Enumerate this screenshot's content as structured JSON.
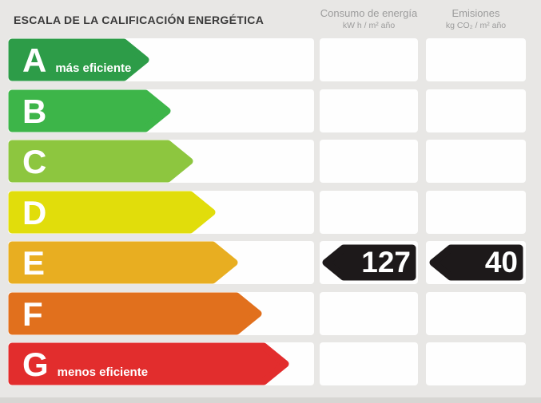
{
  "header": {
    "title": "ESCALA DE LA CALIFICACIÓN ENERGÉTICA",
    "columns": [
      {
        "label": "Consumo de energía",
        "unit": "kW h / m² año"
      },
      {
        "label": "Emisiones",
        "unit": "kg CO₂ / m² año"
      }
    ]
  },
  "scale": {
    "rows": [
      {
        "letter": "A",
        "note": "más eficiente",
        "color": "#2d9c48",
        "arrow_w": 177
      },
      {
        "letter": "B",
        "note": "",
        "color": "#3db549",
        "arrow_w": 204
      },
      {
        "letter": "C",
        "note": "",
        "color": "#8dc63f",
        "arrow_w": 232
      },
      {
        "letter": "D",
        "note": "",
        "color": "#e1dd0b",
        "arrow_w": 260
      },
      {
        "letter": "E",
        "note": "",
        "color": "#e8ae21",
        "arrow_w": 288
      },
      {
        "letter": "F",
        "note": "",
        "color": "#e1701d",
        "arrow_w": 318
      },
      {
        "letter": "G",
        "note": "menos eficiente",
        "color": "#e22d2d",
        "arrow_w": 352
      }
    ]
  },
  "rating": {
    "letter": "E",
    "consumption_value": "127",
    "emissions_value": "40",
    "badge_color": "#1d191a"
  },
  "chart_data": {
    "type": "bar",
    "title": "ESCALA DE LA CALIFICACIÓN ENERGÉTICA",
    "categories": [
      "A",
      "B",
      "C",
      "D",
      "E",
      "F",
      "G"
    ],
    "category_notes": {
      "A": "más eficiente",
      "G": "menos eficiente"
    },
    "bar_colors": [
      "#2d9c48",
      "#3db549",
      "#8dc63f",
      "#e1dd0b",
      "#e8ae21",
      "#e1701d",
      "#e22d2d"
    ],
    "values_relative_length": [
      177,
      204,
      232,
      260,
      288,
      318,
      352
    ],
    "series": [
      {
        "name": "Consumo de energía (kW h / m² año)",
        "values": [
          null,
          null,
          null,
          null,
          127,
          null,
          null
        ]
      },
      {
        "name": "Emisiones (kg CO₂ / m² año)",
        "values": [
          null,
          null,
          null,
          null,
          40,
          null,
          null
        ]
      }
    ],
    "assigned_rating": "E",
    "legend_position": "none",
    "grid": false
  }
}
